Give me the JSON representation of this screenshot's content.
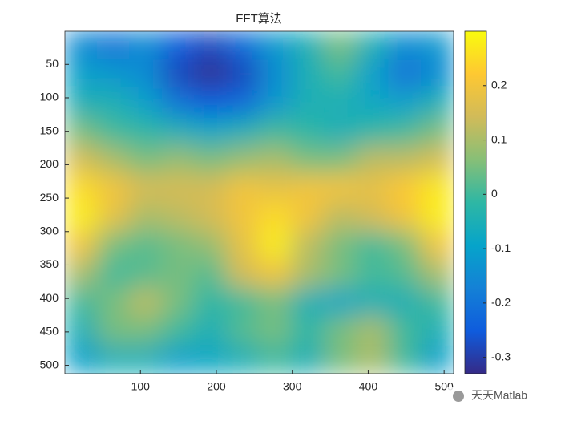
{
  "chart_data": {
    "type": "heatmap",
    "title": "FFT算法",
    "colormap": "parula",
    "ydir": "reverse",
    "xlim": [
      0.5,
      512.5
    ],
    "ylim": [
      0.5,
      512.5
    ],
    "xticks": [
      100,
      200,
      300,
      400,
      500
    ],
    "yticks": [
      50,
      100,
      150,
      200,
      250,
      300,
      350,
      400,
      450,
      500
    ],
    "clim": [
      -0.33,
      0.3
    ],
    "cticks": [
      -0.3,
      -0.2,
      -0.1,
      0,
      0.1,
      0.2
    ],
    "z": [
      [
        -0.15,
        -0.2,
        -0.15,
        -0.25,
        -0.28,
        -0.22,
        -0.12,
        -0.05,
        0.05,
        -0.05,
        -0.15,
        -0.12
      ],
      [
        -0.1,
        -0.12,
        -0.15,
        -0.28,
        -0.32,
        -0.28,
        -0.15,
        -0.05,
        0.0,
        -0.1,
        -0.2,
        -0.15
      ],
      [
        -0.05,
        -0.05,
        -0.1,
        -0.2,
        -0.25,
        -0.22,
        -0.12,
        -0.05,
        -0.05,
        -0.08,
        -0.1,
        -0.05
      ],
      [
        0.05,
        0.0,
        -0.02,
        -0.05,
        -0.08,
        -0.05,
        0.0,
        -0.02,
        -0.05,
        -0.02,
        0.0,
        0.05
      ],
      [
        0.15,
        0.1,
        0.05,
        0.08,
        0.05,
        0.08,
        0.1,
        0.05,
        0.05,
        0.12,
        0.12,
        0.15
      ],
      [
        0.25,
        0.2,
        0.15,
        0.15,
        0.15,
        0.2,
        0.18,
        0.2,
        0.2,
        0.18,
        0.22,
        0.27
      ],
      [
        0.28,
        0.18,
        0.1,
        0.12,
        0.15,
        0.2,
        0.25,
        0.2,
        0.12,
        0.15,
        0.2,
        0.28
      ],
      [
        0.2,
        0.05,
        0.02,
        0.05,
        0.08,
        0.18,
        0.28,
        0.12,
        0.05,
        0.0,
        0.05,
        0.2
      ],
      [
        0.1,
        0.0,
        0.02,
        0.05,
        0.02,
        0.15,
        0.2,
        0.1,
        0.05,
        0.0,
        0.02,
        0.1
      ],
      [
        0.0,
        0.05,
        0.12,
        0.05,
        -0.02,
        0.0,
        0.05,
        -0.05,
        -0.08,
        -0.05,
        -0.05,
        0.0
      ],
      [
        -0.05,
        0.05,
        0.05,
        0.0,
        -0.05,
        0.02,
        0.05,
        -0.02,
        0.05,
        0.1,
        0.0,
        -0.05
      ],
      [
        -0.1,
        -0.05,
        -0.05,
        -0.1,
        -0.08,
        -0.05,
        0.0,
        -0.05,
        0.05,
        0.1,
        0.0,
        -0.1
      ]
    ],
    "watermark": "天天Matlab"
  }
}
